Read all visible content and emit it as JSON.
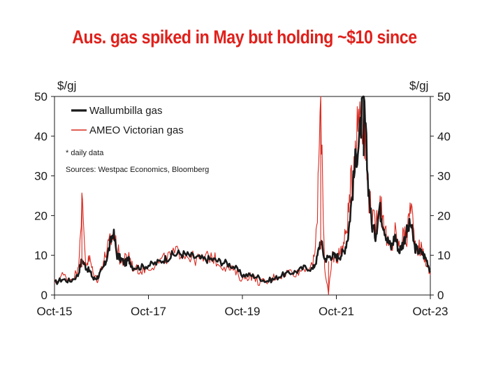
{
  "title": "Aus. gas spiked in May but holding ~$10 since",
  "colors": {
    "title": "#e0201b",
    "wallumbilla": "#1a1a1a",
    "ameo": "#d9291f",
    "axis": "#1a1a1a"
  },
  "chart_data": {
    "type": "line",
    "title": "Aus. gas spiked in May but holding ~$10 since",
    "ylabel_left": "$/gj",
    "ylabel_right": "$/gj",
    "ylim": [
      0,
      50
    ],
    "yticks": [
      0,
      10,
      20,
      30,
      40,
      50
    ],
    "x_range": [
      "2015-10",
      "2023-10"
    ],
    "x_tick_labels": [
      "Oct-15",
      "Oct-17",
      "Oct-19",
      "Oct-21",
      "Oct-23"
    ],
    "x_tick_positions": [
      "2015-10",
      "2017-10",
      "2019-10",
      "2021-10",
      "2023-10"
    ],
    "notes": [
      "* daily data",
      "Sources: Westpac Economics, Bloomberg"
    ],
    "legend_position": "top-left",
    "grid": false,
    "series": [
      {
        "name": "Wallumbilla gas",
        "color": "#1a1a1a",
        "x": [
          "2015-10",
          "2015-12",
          "2016-02",
          "2016-04",
          "2016-05",
          "2016-06",
          "2016-07",
          "2016-08",
          "2016-09",
          "2016-10",
          "2016-11",
          "2016-12",
          "2017-01",
          "2017-02",
          "2017-03",
          "2017-04",
          "2017-05",
          "2017-06",
          "2017-08",
          "2017-10",
          "2017-12",
          "2018-02",
          "2018-04",
          "2018-06",
          "2018-08",
          "2018-10",
          "2018-12",
          "2019-02",
          "2019-04",
          "2019-06",
          "2019-08",
          "2019-10",
          "2019-12",
          "2020-02",
          "2020-04",
          "2020-06",
          "2020-08",
          "2020-10",
          "2020-12",
          "2021-02",
          "2021-04",
          "2021-05",
          "2021-06",
          "2021-07",
          "2021-08",
          "2021-09",
          "2021-10",
          "2021-11",
          "2021-12",
          "2022-01",
          "2022-02",
          "2022-03",
          "2022-04",
          "2022-05",
          "2022-06",
          "2022-07",
          "2022-08",
          "2022-09",
          "2022-10",
          "2022-11",
          "2022-12",
          "2023-01",
          "2023-02",
          "2023-03",
          "2023-04",
          "2023-05",
          "2023-06",
          "2023-07",
          "2023-08",
          "2023-09",
          "2023-10"
        ],
        "values": [
          3,
          4,
          3.5,
          5,
          9,
          7,
          6,
          4,
          4.5,
          6,
          8,
          12,
          16,
          10,
          9,
          8,
          9,
          7,
          7,
          7.5,
          8,
          9,
          10,
          10.5,
          10,
          9.5,
          9,
          9,
          8.5,
          8,
          7,
          5,
          5,
          4.5,
          3.5,
          4,
          5,
          5.5,
          6,
          7,
          6.5,
          9,
          14,
          9,
          9.5,
          10,
          9.5,
          10,
          11,
          15,
          25,
          35,
          40,
          50,
          30,
          18,
          15,
          22,
          18,
          14,
          12,
          15,
          11,
          13,
          16,
          18,
          12,
          11,
          10.5,
          9,
          6
        ]
      },
      {
        "name": "AMEO Victorian gas",
        "color": "#d9291f",
        "x": [
          "2015-10",
          "2015-12",
          "2016-02",
          "2016-04",
          "2016-05",
          "2016-06",
          "2016-07",
          "2016-08",
          "2016-09",
          "2016-10",
          "2016-11",
          "2016-12",
          "2017-01",
          "2017-02",
          "2017-03",
          "2017-04",
          "2017-05",
          "2017-06",
          "2017-08",
          "2017-10",
          "2017-12",
          "2018-02",
          "2018-04",
          "2018-06",
          "2018-08",
          "2018-10",
          "2018-12",
          "2019-02",
          "2019-04",
          "2019-06",
          "2019-08",
          "2019-10",
          "2019-12",
          "2020-02",
          "2020-04",
          "2020-06",
          "2020-08",
          "2020-10",
          "2020-12",
          "2021-02",
          "2021-04",
          "2021-05",
          "2021-06",
          "2021-07",
          "2021-08",
          "2021-09",
          "2021-10",
          "2021-11",
          "2021-12",
          "2022-01",
          "2022-02",
          "2022-03",
          "2022-04",
          "2022-05",
          "2022-06",
          "2022-07",
          "2022-08",
          "2022-09",
          "2022-10",
          "2022-11",
          "2022-12",
          "2023-01",
          "2023-02",
          "2023-03",
          "2023-04",
          "2023-05",
          "2023-06",
          "2023-07",
          "2023-08",
          "2023-09",
          "2023-10"
        ],
        "values": [
          3,
          5,
          4,
          6,
          23.5,
          8,
          9,
          5,
          4,
          7,
          10,
          13,
          15,
          12,
          8,
          9,
          10,
          7,
          6,
          7,
          8,
          9,
          10,
          11,
          10,
          9,
          9,
          10,
          8,
          7,
          6,
          4,
          5,
          3.5,
          3,
          4.5,
          5,
          6,
          5.5,
          7,
          7,
          16,
          50,
          7,
          0,
          10,
          9,
          11,
          13,
          20,
          30,
          40,
          48,
          45,
          28,
          20,
          17,
          24,
          20,
          13,
          11,
          16,
          12,
          15,
          14,
          24,
          13,
          12,
          11,
          8,
          5
        ]
      }
    ],
    "spikes": [
      {
        "series": "AMEO Victorian gas",
        "x": "2016-05",
        "value": 23.5
      },
      {
        "series": "AMEO Victorian gas",
        "x": "2021-06",
        "value": 50
      },
      {
        "series": "AMEO Victorian gas",
        "x": "2021-08",
        "value": 0
      },
      {
        "series": "Wallumbilla gas",
        "x": "2022-05",
        "value": 50
      }
    ]
  }
}
